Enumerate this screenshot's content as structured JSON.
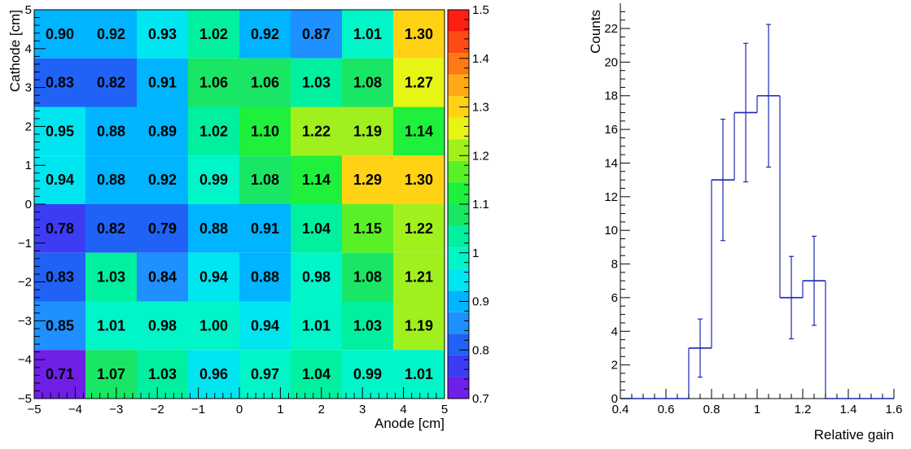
{
  "chart_data": [
    {
      "type": "heatmap",
      "xlabel": "Anode [cm]",
      "ylabel": "Cathode [cm]",
      "xlim": [
        -5,
        5
      ],
      "ylim": [
        -5,
        5
      ],
      "x_ticks": [
        "−5",
        "−4",
        "−3",
        "−2",
        "−1",
        "0",
        "1",
        "2",
        "3",
        "4",
        "5"
      ],
      "y_ticks": [
        "−5",
        "−4",
        "−3",
        "−2",
        "−1",
        "0",
        "1",
        "2",
        "3",
        "4",
        "5"
      ],
      "x_edges": [
        -5,
        -3.75,
        -2.5,
        -1.25,
        0,
        1.25,
        2.5,
        3.75,
        5
      ],
      "y_edges": [
        -5,
        -3.75,
        -2.5,
        -1.25,
        0,
        1.25,
        2.5,
        3.75,
        5
      ],
      "values_top_to_bottom": [
        [
          0.9,
          0.92,
          0.93,
          1.02,
          0.92,
          0.87,
          1.01,
          1.3
        ],
        [
          0.83,
          0.82,
          0.91,
          1.06,
          1.06,
          1.03,
          1.08,
          1.27
        ],
        [
          0.95,
          0.88,
          0.89,
          1.02,
          1.1,
          1.22,
          1.19,
          1.14
        ],
        [
          0.94,
          0.88,
          0.92,
          0.99,
          1.08,
          1.14,
          1.29,
          1.3
        ],
        [
          0.78,
          0.82,
          0.79,
          0.88,
          0.91,
          1.04,
          1.15,
          1.22
        ],
        [
          0.83,
          1.03,
          0.84,
          0.94,
          0.88,
          0.98,
          1.08,
          1.21
        ],
        [
          0.85,
          1.01,
          0.98,
          1.0,
          0.94,
          1.01,
          1.03,
          1.19
        ],
        [
          0.71,
          1.07,
          1.03,
          0.96,
          0.97,
          1.04,
          0.99,
          1.01
        ]
      ],
      "value_labels_top_to_bottom": [
        [
          "0.90",
          "0.92",
          "0.93",
          "1.02",
          "0.92",
          "0.87",
          "1.01",
          "1.30"
        ],
        [
          "0.83",
          "0.82",
          "0.91",
          "1.06",
          "1.06",
          "1.03",
          "1.08",
          "1.27"
        ],
        [
          "0.95",
          "0.88",
          "0.89",
          "1.02",
          "1.10",
          "1.22",
          "1.19",
          "1.14"
        ],
        [
          "0.94",
          "0.88",
          "0.92",
          "0.99",
          "1.08",
          "1.14",
          "1.29",
          "1.30"
        ],
        [
          "0.78",
          "0.82",
          "0.79",
          "0.88",
          "0.91",
          "1.04",
          "1.15",
          "1.22"
        ],
        [
          "0.83",
          "1.03",
          "0.84",
          "0.94",
          "0.88",
          "0.98",
          "1.08",
          "1.21"
        ],
        [
          "0.85",
          "1.01",
          "0.98",
          "1.00",
          "0.94",
          "1.01",
          "1.03",
          "1.19"
        ],
        [
          "0.71",
          "1.07",
          "1.03",
          "0.96",
          "0.97",
          "1.04",
          "0.99",
          "1.01"
        ]
      ],
      "zlim": [
        0.7,
        1.5
      ],
      "colorbar_ticks": [
        0.7,
        0.8,
        0.9,
        1.0,
        1.1,
        1.2,
        1.3,
        1.4,
        1.5
      ],
      "colorbar_tick_labels": [
        "0.7",
        "0.8",
        "0.9",
        "1",
        "1.1",
        "1.2",
        "1.3",
        "1.4",
        "1.5"
      ],
      "colorbar_bands": 16,
      "palette": [
        "#6f1fe6",
        "#3c3cf5",
        "#1f62f5",
        "#1e90ff",
        "#00b4ff",
        "#00e6f0",
        "#00f5c8",
        "#00f0a0",
        "#19e664",
        "#1ef03c",
        "#5af028",
        "#a0f01e",
        "#e6f514",
        "#ffd214",
        "#ffaa14",
        "#ff7814",
        "#ff4b14",
        "#ff1e14"
      ]
    },
    {
      "type": "histogram",
      "xlabel": "Relative gain",
      "ylabel": "Counts",
      "xlim": [
        0.4,
        1.6
      ],
      "ylim": [
        0,
        23.5
      ],
      "x_ticks": [
        0.4,
        0.6,
        0.8,
        1.0,
        1.2,
        1.4,
        1.6
      ],
      "x_tick_labels": [
        "0.4",
        "0.6",
        "0.8",
        "1",
        "1.2",
        "1.4",
        "1.6"
      ],
      "y_ticks": [
        0,
        2,
        4,
        6,
        8,
        10,
        12,
        14,
        16,
        18,
        20,
        22
      ],
      "y_tick_labels": [
        "0",
        "2",
        "4",
        "6",
        "8",
        "10",
        "12",
        "14",
        "16",
        "18",
        "20",
        "22"
      ],
      "bin_edges": [
        0.4,
        0.5,
        0.6,
        0.7,
        0.8,
        0.9,
        1.0,
        1.1,
        1.2,
        1.3,
        1.4,
        1.5,
        1.6
      ],
      "counts": [
        0,
        0,
        0,
        3,
        13,
        17,
        18,
        6,
        7,
        0,
        0,
        0
      ],
      "errors": [
        0,
        0,
        0,
        1.73,
        3.61,
        4.12,
        4.24,
        2.45,
        2.65,
        0,
        0,
        0
      ],
      "line_color": "#1a28b4"
    }
  ]
}
